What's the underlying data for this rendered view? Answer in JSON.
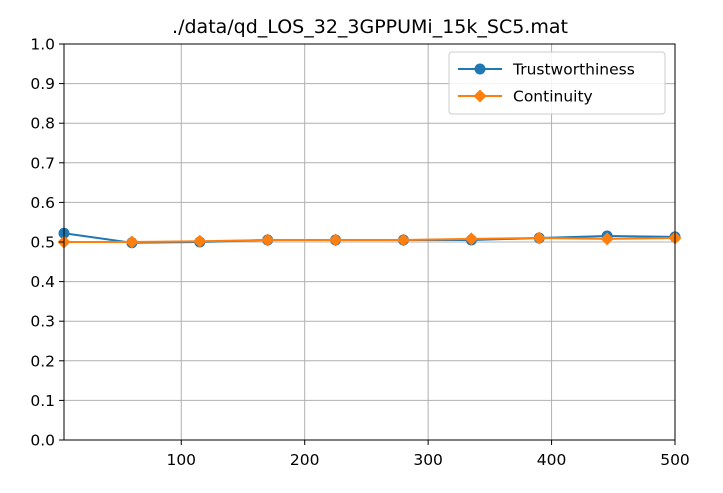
{
  "chart_data": {
    "type": "line",
    "title": "./data/qd_LOS_32_3GPPUMi_15k_SC5.mat",
    "xlabel": "",
    "ylabel": "",
    "xlim": [
      5,
      500
    ],
    "ylim": [
      0.0,
      1.0
    ],
    "x_ticks": [
      "100",
      "200",
      "300",
      "400",
      "500"
    ],
    "y_ticks": [
      "0.0",
      "0.1",
      "0.2",
      "0.3",
      "0.4",
      "0.5",
      "0.6",
      "0.7",
      "0.8",
      "0.9",
      "1.0"
    ],
    "grid": true,
    "legend_position": "top-right",
    "x": [
      5,
      60,
      115,
      170,
      225,
      280,
      335,
      390,
      445,
      500
    ],
    "series": [
      {
        "name": "Trustworthiness",
        "color": "#1f77b4",
        "marker": "circle",
        "values": [
          0.522,
          0.498,
          0.5,
          0.505,
          0.505,
          0.505,
          0.505,
          0.51,
          0.515,
          0.513
        ]
      },
      {
        "name": "Continuity",
        "color": "#ff7f0e",
        "marker": "diamond",
        "values": [
          0.5,
          0.5,
          0.502,
          0.505,
          0.505,
          0.505,
          0.508,
          0.51,
          0.508,
          0.51
        ]
      }
    ]
  }
}
